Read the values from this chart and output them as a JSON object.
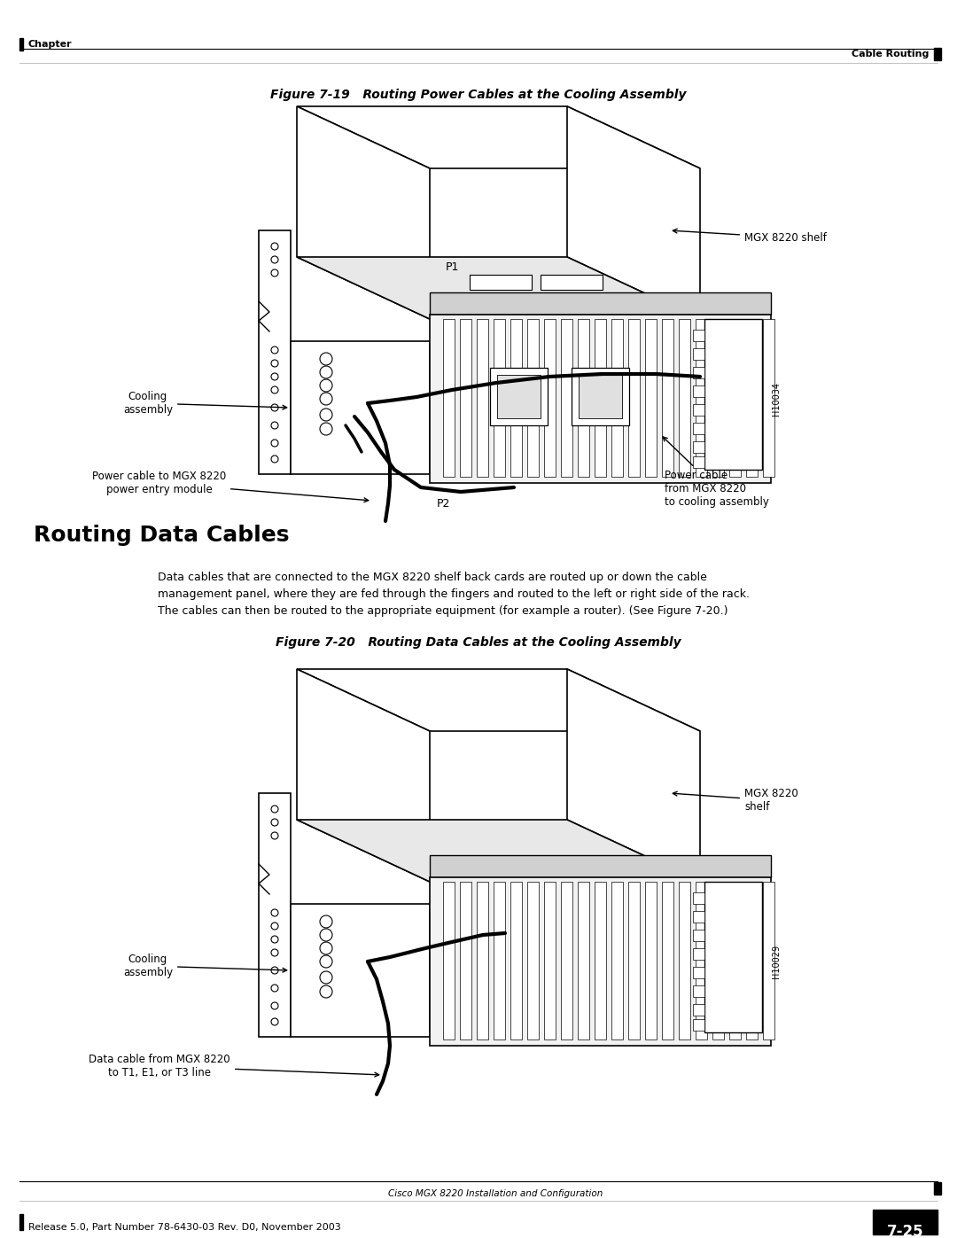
{
  "page_bg": "#ffffff",
  "header_left": "Chapter",
  "header_right": "Cable Routing",
  "footer_left": "Release 5.0, Part Number 78-6430-03 Rev. D0, November 2003",
  "footer_right_top": "Cisco MGX 8220 Installation and Configuration",
  "footer_right_bottom": "7-25",
  "fig19_title": "Figure 7-19   Routing Power Cables at the Cooling Assembly",
  "fig20_title": "Figure 7-20   Routing Data Cables at the Cooling Assembly",
  "section_title": "Routing Data Cables",
  "body_text": "Data cables that are connected to the MGX 8220 shelf back cards are routed up or down the cable\nmanagement panel, where they are fed through the fingers and routed to the left or right side of the rack.\nThe cables can then be routed to the appropriate equipment (for example a router). (See Figure 7-20.)",
  "fig19_labels": {
    "mgx_shelf": "MGX 8220 shelf",
    "cooling_assembly": "Cooling\nassembly",
    "power_cable_module": "Power cable to MGX 8220\npower entry module",
    "p1": "P1",
    "p2": "P2",
    "power_cable_cooling": "Power cable\nfrom MGX 8220\nto cooling assembly",
    "h_code": "H10034"
  },
  "fig20_labels": {
    "mgx_shelf": "MGX 8220\nshelf",
    "cooling_assembly": "Cooling\nassembly",
    "data_cable": "Data cable from MGX 8220\nto T1, E1, or T3 line",
    "h_code": "H10029"
  }
}
